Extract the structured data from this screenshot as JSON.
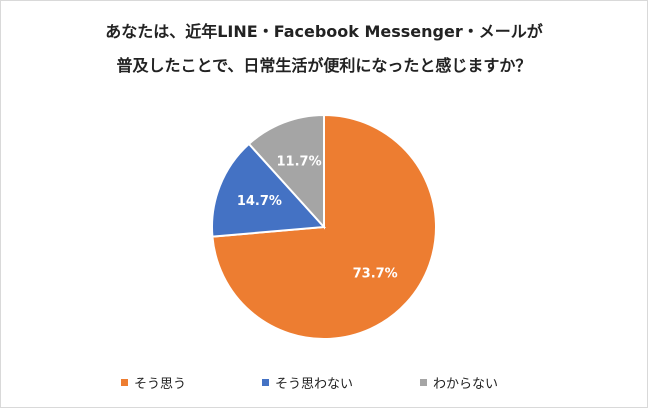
{
  "chart_data": {
    "type": "pie",
    "title_lines": [
      "あなたは、近年LINE・Facebook Messenger・メールが",
      "普及したことで、日常生活が便利になったと感じますか？"
    ],
    "slices": [
      {
        "label": "そう思う",
        "value": 73.7,
        "value_label": "73.7%",
        "color": "#ED7D31"
      },
      {
        "label": "そう思わない",
        "value": 14.7,
        "value_label": "14.7%",
        "color": "#4472C4"
      },
      {
        "label": "わからない",
        "value": 11.7,
        "value_label": "11.7%",
        "color": "#A5A5A5"
      }
    ],
    "legend_position": "bottom",
    "start_angle": "12 o'clock",
    "direction": "clockwise"
  }
}
